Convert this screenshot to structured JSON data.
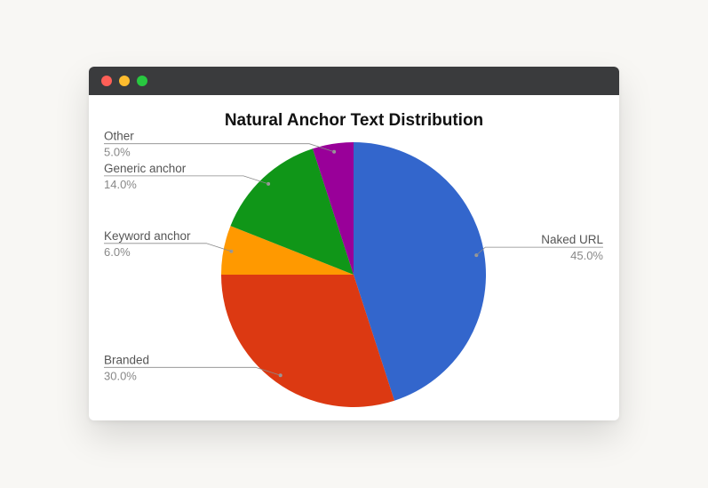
{
  "window": {
    "controls": [
      "close",
      "minimize",
      "maximize"
    ]
  },
  "chart_data": {
    "type": "pie",
    "title": "Natural Anchor Text Distribution",
    "slices": [
      {
        "label": "Naked URL",
        "value": 45.0,
        "display": "45.0%",
        "color": "#3366cc"
      },
      {
        "label": "Branded",
        "value": 30.0,
        "display": "30.0%",
        "color": "#dc3912"
      },
      {
        "label": "Keyword anchor",
        "value": 6.0,
        "display": "6.0%",
        "color": "#ff9900"
      },
      {
        "label": "Generic anchor",
        "value": 14.0,
        "display": "14.0%",
        "color": "#109618"
      },
      {
        "label": "Other",
        "value": 5.0,
        "display": "5.0%",
        "color": "#990099"
      }
    ],
    "start": "12 o'clock",
    "direction": "clockwise",
    "legend": "labeled callouts"
  }
}
